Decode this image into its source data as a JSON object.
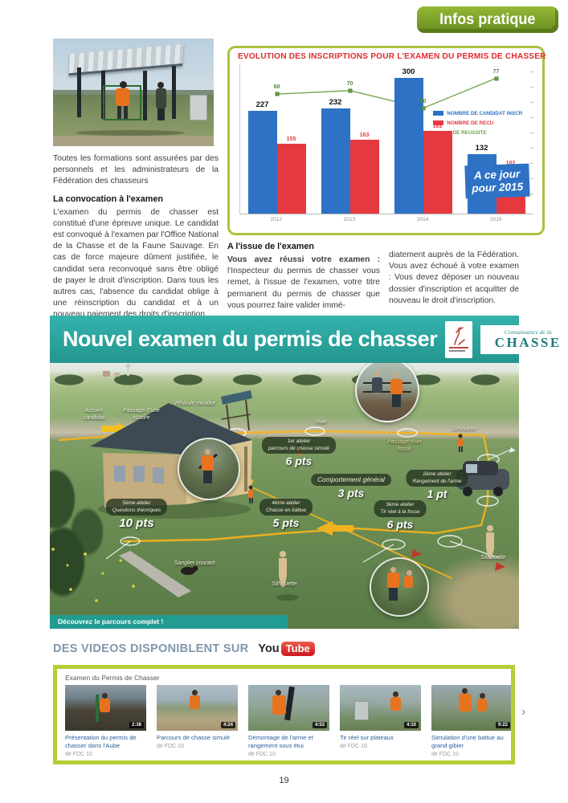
{
  "page": {
    "number": "19"
  },
  "badge": {
    "label": "Infos pratique"
  },
  "left_column": {
    "intro": "Toutes les formations sont assurées par des personnels et les administrateurs de la Fédération des chasseurs",
    "heading": "La convocation à l'examen",
    "body": "L'examen du permis de chasser est constitué d'une épreuve unique. Le candidat est convoqué à l'examen par l'Office National de la Chasse et de la Faune Sauvage. En cas de force majeure dûment justifiée, le candidat sera reconvoqué sans être obligé de payer le droit d'inscription. Dans tous les autres cas, l'absence du candidat oblige à une réinscription du candidat et à un nouveau paiement des droits d'inscription."
  },
  "exam_outcome": {
    "heading": "A l'issue de l'examen",
    "lead_bold": "Vous avez réussi votre examen :",
    "col1_rest": " l'Inspecteur du permis de chasser vous remet, à l'issue de l'examen, votre titre permanent du permis de chasser que vous pourrez faire valider immé-",
    "col2": "diatement auprès de la Fédération. Vous avez échoué à votre examen : Vous devez déposer un nouveau dossier d'inscription et acquitter de nouveau le droit d'inscription."
  },
  "chart_data": {
    "type": "bar+line",
    "title": "EVOLUTION DES INSCRIPTIONS POUR L'EXAMEN DU PERMIS DE CHASSER",
    "categories": [
      "2012",
      "2013",
      "2014",
      "2015"
    ],
    "series": [
      {
        "name": "NOMBRE DE CANDIDAT INSCR",
        "type": "bar",
        "color": "#2e72c5",
        "values": [
          227,
          232,
          300,
          132
        ]
      },
      {
        "name": "NOMBRE DE RECU",
        "type": "bar",
        "color": "#e6393f",
        "values": [
          155,
          163,
          182,
          102
        ]
      },
      {
        "name": "% DE REUSSITE",
        "type": "line",
        "color": "#6fa34c",
        "values": [
          68,
          70,
          60,
          77
        ]
      }
    ],
    "ylim": [
      0,
      330
    ],
    "y2lim": [
      0,
      85
    ],
    "legend_position": "middle-right",
    "grid": false,
    "badge": [
      "A ce jour",
      "pour 2015"
    ]
  },
  "poster": {
    "title": "Nouvel examen du permis de chasser",
    "logo_chasse": {
      "top": "Connaissance de la",
      "main": "CHASSE"
    },
    "labels": {
      "accueil": "Accueil candidat",
      "cloture": "Passage d'une clôture",
      "mirador": "Véhicule mirador",
      "haie": "Haie",
      "fosse": "Passage d'un fossé",
      "silhouette1": "Silhouette",
      "silhouette2": "Silhouette",
      "silhouette3": "Silhouette",
      "sanglier": "Sanglier courant"
    },
    "stations": [
      {
        "name": "1er atelier",
        "desc": "parcours de chasse simulé",
        "pts": "6 pts"
      },
      {
        "name": "2ème atelier",
        "desc": "Rangement de l'arme",
        "pts": "1 pt"
      },
      {
        "name": "3ème atelier",
        "desc": "Tir réel à la fosse",
        "pts": "6 pts"
      },
      {
        "name": "4ème atelier",
        "desc": "Chasse en battue",
        "pts": "5 pts"
      },
      {
        "name": "5ème atelier",
        "desc": "Questions théoriques",
        "pts": "10 pts"
      },
      {
        "name": "Comportement général",
        "desc": "",
        "pts": "3 pts"
      }
    ],
    "footer": "Découvrez le parcours complet !"
  },
  "videos": {
    "heading": "DES VIDEOS DISPONIBLENT SUR",
    "youtube": {
      "you": "You",
      "tube": "Tube"
    },
    "panel_title": "Examen du Permis de Chasser",
    "items": [
      {
        "title": "Présentation du permis de chasser dans l'Aube",
        "author": "de FDC 10",
        "duration": "2:38"
      },
      {
        "title": "Parcours de chasse simulé",
        "author": "de FDC 10",
        "duration": "4:24"
      },
      {
        "title": "Démontage de l'arme et rangement sous étui",
        "author": "de FDC 10",
        "duration": "4:53"
      },
      {
        "title": "Tir réel sur plateaux",
        "author": "de FDC 10",
        "duration": "4:10"
      },
      {
        "title": "Simulation d'une battue au grand gibier",
        "author": "de FDC 10",
        "duration": "9:22"
      }
    ],
    "next_arrow": "›"
  },
  "colors": {
    "badge_green": "#7ba028",
    "teal": "#2ba7a2",
    "lime_border": "#b5ce35",
    "chart_frame": "#a9c23f",
    "title_red": "#e02a2f",
    "youtube_red": "#cc181e",
    "link_blue": "#2b5f9e"
  }
}
